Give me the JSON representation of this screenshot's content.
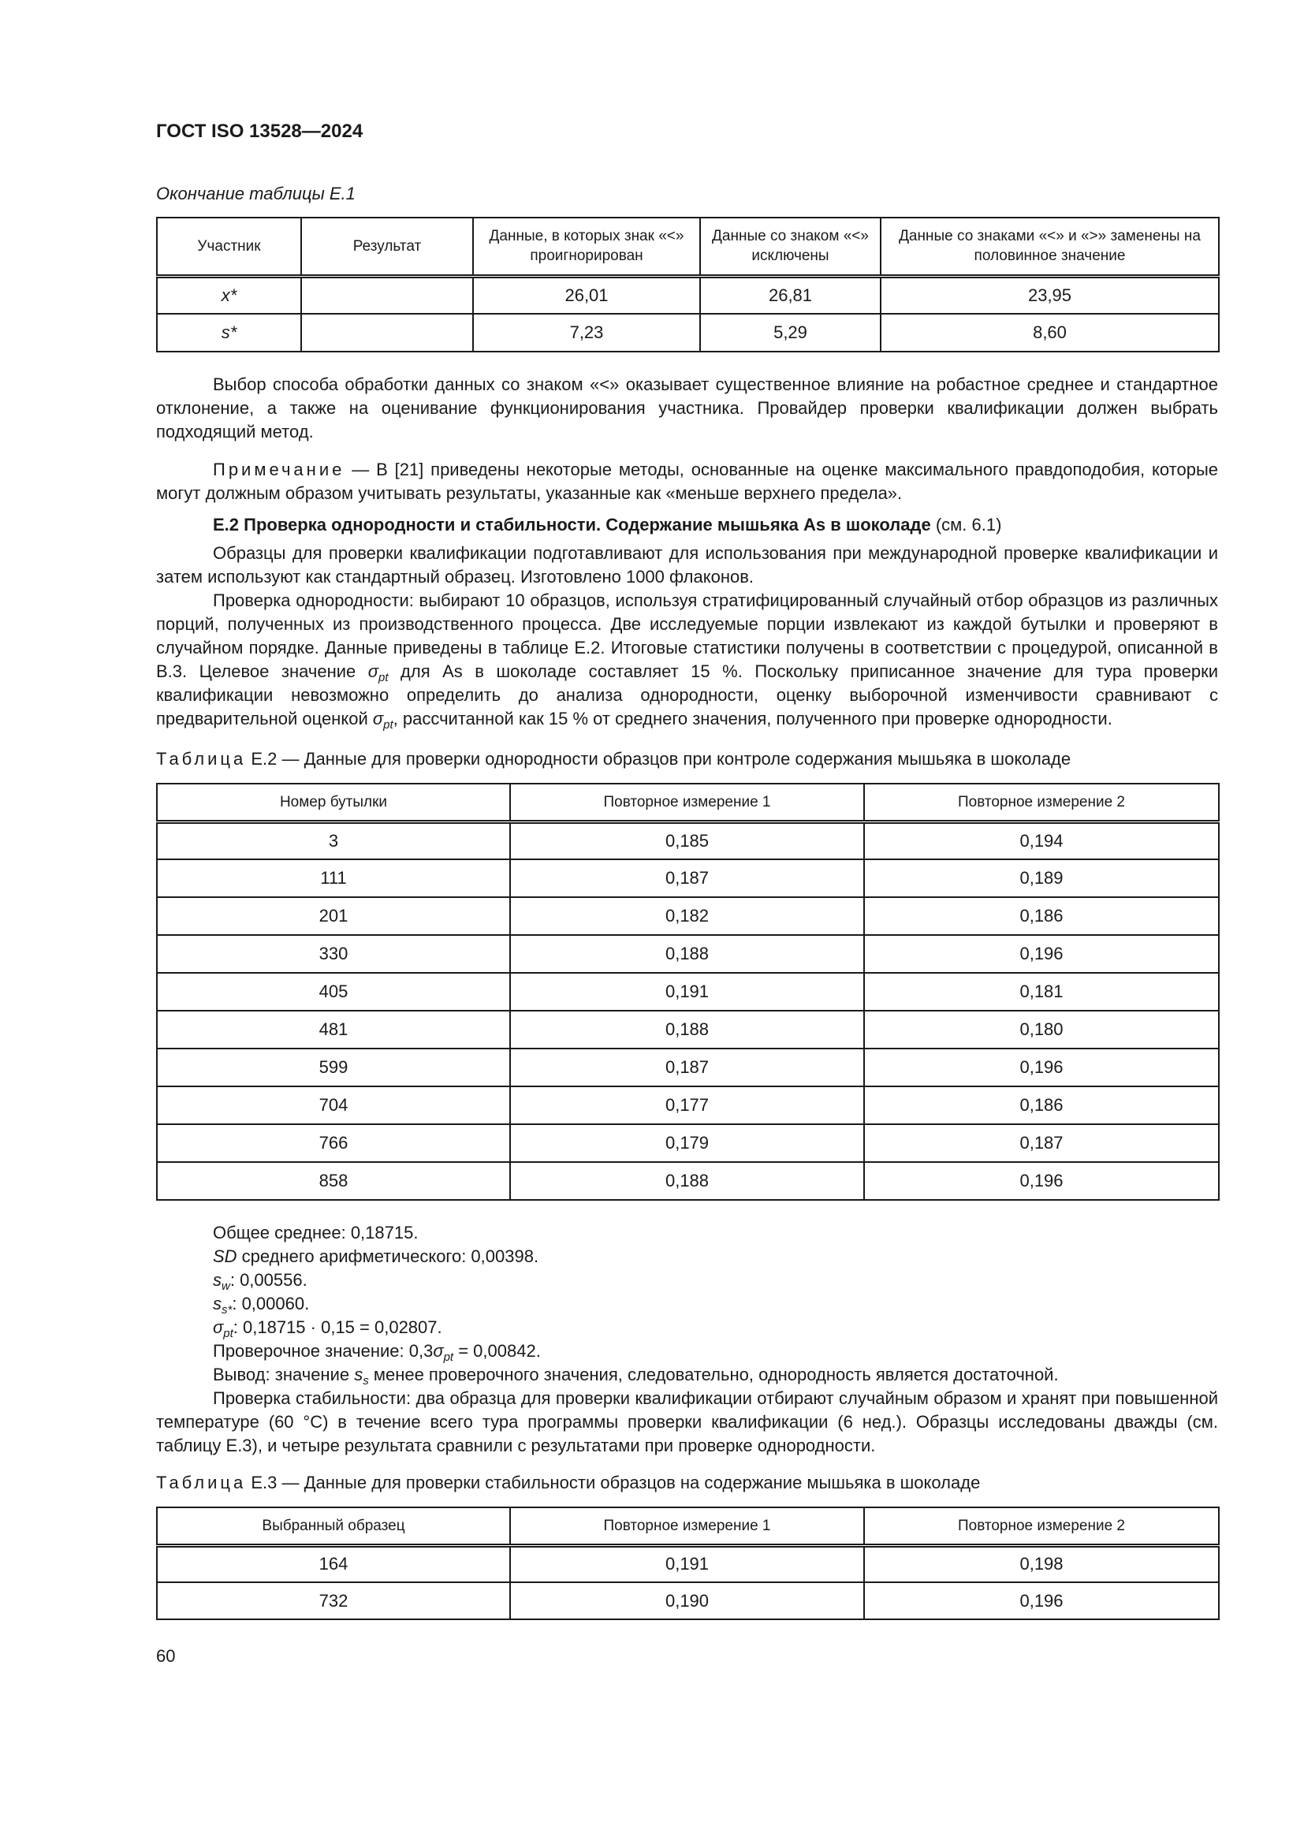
{
  "header": {
    "doc_id": "ГОСТ ISO 13528—2024"
  },
  "table_e1": {
    "continuation": "Окончание таблицы Е.1",
    "columns": [
      "Участник",
      "Результат",
      "Данные, в которых знак «<» проигнорирован",
      "Данные со знаком «<» исключены",
      "Данные со знаками «<» и «>» заменены на половинное значение"
    ],
    "rows": [
      [
        "x*",
        "",
        "26,01",
        "26,81",
        "23,95"
      ],
      [
        "s*",
        "",
        "7,23",
        "5,29",
        "8,60"
      ]
    ]
  },
  "para1": "Выбор способа обработки данных со знаком «<» оказывает существенное влияние на робастное среднее и стандартное отклонение, а также на оценивание функционирования участника. Провайдер проверки квалификации должен выбрать подходящий метод.",
  "note": {
    "label": "Примечание",
    "text": " — В [21] приведены некоторые методы, основанные на оценке максимального правдоподобия, которые могут должным образом учитывать результаты, указанные как «меньше верхнего предела»."
  },
  "section": {
    "title": "Е.2 Проверка однородности и стабильности. Содержание мышьяка As в шоколаде",
    "ref": " (см. 6.1)"
  },
  "para2": "Образцы для проверки квалификации подготавливают для использования при международной проверке квалификации и затем используют как стандартный образец. Изготовлено 1000 флаконов.",
  "para3": {
    "a": "Проверка однородности: выбирают 10 образцов, используя стратифицированный случайный отбор образцов из различных порций, полученных из производственного процесса. Две исследуемые порции извлекают из каждой бутылки и проверяют в случайном порядке. Данные приведены в таблице Е.2. Итоговые статистики получены в соответствии с процедурой, описанной в В.3. Целевое значение ",
    "b": " для As в шоколаде составляет 15 %. Поскольку приписанное значение для тура проверки квалификации невозможно определить до анализа однородности, оценку выборочной изменчивости сравнивают с предварительной оценкой ",
    "c": ", рассчитанной как 15 % от среднего значения, полученного при проверке однородности.",
    "sigma": "σ",
    "pt": "pt"
  },
  "table_e2": {
    "caption_label": "Таблица",
    "caption": " Е.2 — Данные для проверки однородности образцов при контроле содержания мышьяка в шоколаде",
    "columns": [
      "Номер бутылки",
      "Повторное измерение 1",
      "Повторное измерение 2"
    ],
    "rows": [
      [
        "3",
        "0,185",
        "0,194"
      ],
      [
        "111",
        "0,187",
        "0,189"
      ],
      [
        "201",
        "0,182",
        "0,186"
      ],
      [
        "330",
        "0,188",
        "0,196"
      ],
      [
        "405",
        "0,191",
        "0,181"
      ],
      [
        "481",
        "0,188",
        "0,180"
      ],
      [
        "599",
        "0,187",
        "0,196"
      ],
      [
        "704",
        "0,177",
        "0,186"
      ],
      [
        "766",
        "0,179",
        "0,187"
      ],
      [
        "858",
        "0,188",
        "0,196"
      ]
    ]
  },
  "stats": {
    "mean": "Общее среднее: 0,18715.",
    "sd_label": "SD",
    "sd": " среднего арифметического: 0,00398.",
    "sw_s": "s",
    "sw_sub": "w",
    "sw": ": 0,00556.",
    "ss_s": "s",
    "ss_sub": "s*",
    "ss": ": 0,00060.",
    "sig_s": "σ",
    "sig_sub": "pt",
    "sig": ": 0,18715 · 0,15 = 0,02807.",
    "check_a": "Проверочное значение: 0,3",
    "check_s": "σ",
    "check_sub": "pt",
    "check_b": " = 0,00842.",
    "concl_a": "Вывод: значение ",
    "concl_s": "s",
    "concl_sub": "s",
    "concl_b": " менее проверочного значения, следовательно, однородность является достаточной."
  },
  "para4": "Проверка стабильности: два образца для проверки квалификации отбирают случайным образом и хранят при повышенной температуре (60 °С) в течение всего тура программы проверки квалификации (6 нед.). Образцы исследованы дважды (см. таблицу Е.3), и четыре результата сравнили с результатами при проверке однородности.",
  "table_e3": {
    "caption_label": "Таблица",
    "caption": " Е.3 — Данные для проверки стабильности образцов на содержание мышьяка в шоколаде",
    "columns": [
      "Выбранный образец",
      "Повторное измерение 1",
      "Повторное измерение 2"
    ],
    "rows": [
      [
        "164",
        "0,191",
        "0,198"
      ],
      [
        "732",
        "0,190",
        "0,196"
      ]
    ]
  },
  "footer": {
    "page_number": "60"
  }
}
